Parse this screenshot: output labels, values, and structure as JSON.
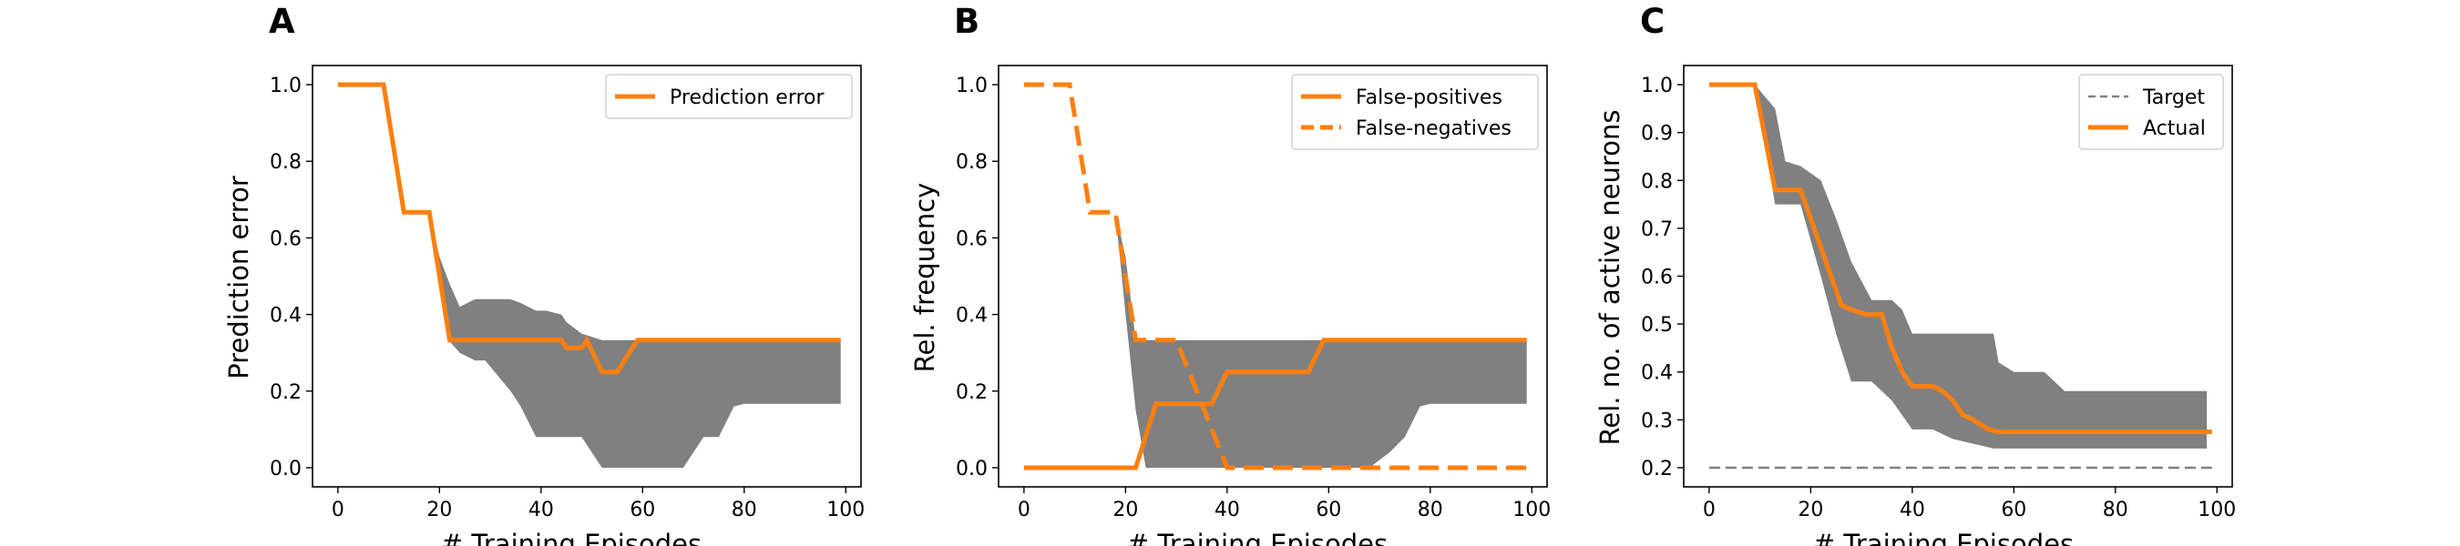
{
  "colors": {
    "actual": "#ff7f0e",
    "band": "#808080",
    "target": "#808080",
    "frame": "#000000"
  },
  "chart_data": [
    {
      "type": "line",
      "panel_label": "A",
      "xlabel": "# Training Episodes",
      "ylabel": "Prediction error",
      "xlim": [
        -5,
        103
      ],
      "ylim": [
        -0.05,
        1.05
      ],
      "xticks": [
        0,
        20,
        40,
        60,
        80,
        100
      ],
      "xtick_labels": [
        "0",
        "20",
        "40",
        "60",
        "80",
        "100"
      ],
      "yticks": [
        0,
        0.2,
        0.4,
        0.6,
        0.8,
        1.0
      ],
      "ytick_labels": [
        "0.0",
        "0.2",
        "0.4",
        "0.6",
        "0.8",
        "1.0"
      ],
      "grid": false,
      "legend": {
        "placement": "top-right"
      },
      "series": [
        {
          "name": "Prediction error",
          "style": "solid",
          "x": [
            0,
            9,
            13,
            18,
            22,
            44,
            45,
            48,
            49,
            52,
            55,
            59,
            99
          ],
          "y": [
            1.0,
            1.0,
            0.667,
            0.667,
            0.333,
            0.333,
            0.313,
            0.313,
            0.333,
            0.25,
            0.25,
            0.333,
            0.333
          ]
        }
      ],
      "band": {
        "x": [
          18,
          20,
          22,
          24,
          27,
          29,
          34,
          36,
          39,
          41,
          44,
          45,
          48,
          52,
          53,
          58,
          62,
          66,
          68,
          72,
          75,
          78,
          80,
          85,
          90,
          99
        ],
        "upper": [
          0.667,
          0.55,
          0.48,
          0.42,
          0.44,
          0.44,
          0.44,
          0.43,
          0.41,
          0.41,
          0.4,
          0.38,
          0.35,
          0.333,
          0.333,
          0.333,
          0.333,
          0.333,
          0.333,
          0.333,
          0.333,
          0.333,
          0.333,
          0.333,
          0.333,
          0.333
        ],
        "lower": [
          0.667,
          0.5,
          0.33,
          0.3,
          0.28,
          0.28,
          0.2,
          0.16,
          0.08,
          0.08,
          0.08,
          0.08,
          0.08,
          0.0,
          0.0,
          0.0,
          0.0,
          0.0,
          0.0,
          0.08,
          0.08,
          0.16,
          0.167,
          0.167,
          0.167,
          0.167
        ]
      }
    },
    {
      "type": "line",
      "panel_label": "B",
      "xlabel": "# Training Episodes",
      "ylabel": "Rel. frequency",
      "xlim": [
        -5,
        103
      ],
      "ylim": [
        -0.05,
        1.05
      ],
      "xticks": [
        0,
        20,
        40,
        60,
        80,
        100
      ],
      "xtick_labels": [
        "0",
        "20",
        "40",
        "60",
        "80",
        "100"
      ],
      "yticks": [
        0,
        0.2,
        0.4,
        0.6,
        0.8,
        1.0
      ],
      "ytick_labels": [
        "0.0",
        "0.2",
        "0.4",
        "0.6",
        "0.8",
        "1.0"
      ],
      "grid": false,
      "legend": {
        "placement": "top-right"
      },
      "series": [
        {
          "name": "False-positives",
          "style": "solid",
          "x": [
            0,
            22,
            26,
            37,
            40,
            56,
            59,
            99
          ],
          "y": [
            0.0,
            0.0,
            0.167,
            0.167,
            0.25,
            0.25,
            0.333,
            0.333
          ]
        },
        {
          "name": "False-negatives",
          "style": "dashed",
          "x": [
            0,
            9,
            13,
            18,
            22,
            30,
            35,
            40,
            99
          ],
          "y": [
            1.0,
            1.0,
            0.667,
            0.667,
            0.333,
            0.333,
            0.167,
            0.0,
            0.0
          ]
        }
      ],
      "band": {
        "x": [
          18,
          20,
          22,
          24,
          60,
          66,
          68,
          72,
          75,
          78,
          80,
          99
        ],
        "upper": [
          0.667,
          0.55,
          0.333,
          0.333,
          0.333,
          0.333,
          0.333,
          0.333,
          0.333,
          0.333,
          0.333,
          0.333
        ],
        "lower": [
          0.667,
          0.4,
          0.15,
          0.0,
          0.0,
          0.0,
          0.0,
          0.04,
          0.08,
          0.16,
          0.167,
          0.167
        ]
      }
    },
    {
      "type": "line",
      "panel_label": "C",
      "xlabel": "# Training Episodes",
      "ylabel": "Rel. no. of active neurons",
      "xlim": [
        -5,
        103
      ],
      "ylim": [
        0.16,
        1.04
      ],
      "xticks": [
        0,
        20,
        40,
        60,
        80,
        100
      ],
      "xtick_labels": [
        "0",
        "20",
        "40",
        "60",
        "80",
        "100"
      ],
      "yticks": [
        0.2,
        0.3,
        0.4,
        0.5,
        0.6,
        0.7,
        0.8,
        0.9,
        1.0
      ],
      "ytick_labels": [
        "0.2",
        "0.3",
        "0.4",
        "0.5",
        "0.6",
        "0.7",
        "0.8",
        "0.9",
        "1.0"
      ],
      "grid": false,
      "legend": {
        "placement": "top-right"
      },
      "series": [
        {
          "name": "Target",
          "style": "dashed",
          "x": [
            0,
            99
          ],
          "y": [
            0.2,
            0.2
          ]
        },
        {
          "name": "Actual",
          "style": "solid",
          "x": [
            0,
            9,
            13,
            18,
            20,
            23,
            26,
            28,
            31,
            34,
            36,
            38,
            40,
            44,
            46,
            48,
            50,
            52,
            55,
            57,
            99
          ],
          "y": [
            1.0,
            1.0,
            0.78,
            0.78,
            0.72,
            0.63,
            0.54,
            0.53,
            0.52,
            0.52,
            0.45,
            0.4,
            0.37,
            0.37,
            0.36,
            0.34,
            0.31,
            0.3,
            0.28,
            0.275,
            0.275
          ]
        }
      ],
      "band": {
        "x": [
          9,
          13,
          15,
          18,
          22,
          25,
          28,
          32,
          34,
          36,
          38,
          40,
          44,
          48,
          52,
          56,
          57,
          60,
          66,
          70,
          80,
          90,
          98
        ],
        "upper": [
          1.0,
          0.95,
          0.84,
          0.83,
          0.8,
          0.72,
          0.63,
          0.55,
          0.55,
          0.55,
          0.53,
          0.48,
          0.48,
          0.48,
          0.48,
          0.48,
          0.42,
          0.4,
          0.4,
          0.36,
          0.36,
          0.36,
          0.36
        ],
        "lower": [
          1.0,
          0.75,
          0.75,
          0.75,
          0.6,
          0.48,
          0.38,
          0.38,
          0.36,
          0.34,
          0.31,
          0.28,
          0.28,
          0.26,
          0.25,
          0.24,
          0.24,
          0.24,
          0.24,
          0.24,
          0.24,
          0.24,
          0.24
        ]
      }
    }
  ]
}
